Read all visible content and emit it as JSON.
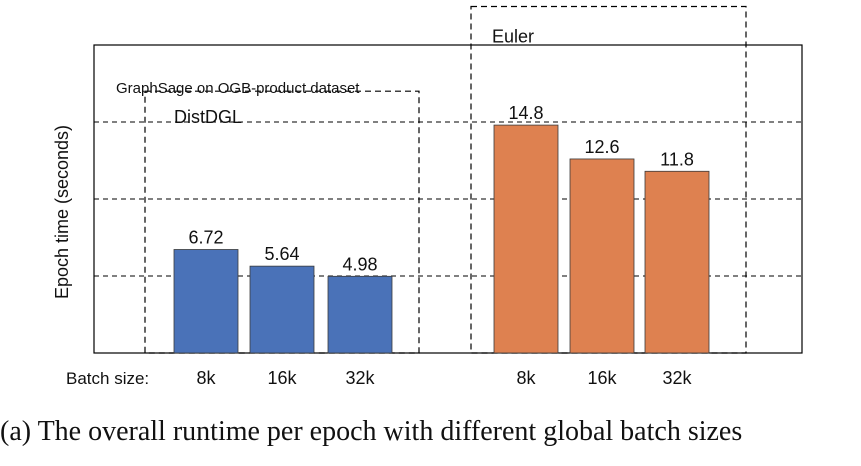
{
  "chart_data": {
    "type": "bar",
    "annotation": "GraphSage on OGB-product dataset",
    "xlabel": "Batch size:",
    "ylabel": "Epoch time (seconds)",
    "ylim": [
      0,
      20
    ],
    "grid": "horizontal dashed",
    "groups": [
      {
        "name": "DistDGL",
        "color": "#4a72b8",
        "categories": [
          "8k",
          "16k",
          "32k"
        ],
        "values": [
          6.72,
          5.64,
          4.98
        ],
        "labels": [
          "6.72",
          "5.64",
          "4.98"
        ]
      },
      {
        "name": "Euler",
        "color": "#de8150",
        "categories": [
          "8k",
          "16k",
          "32k"
        ],
        "values": [
          14.8,
          12.6,
          11.8
        ],
        "labels": [
          "14.8",
          "12.6",
          "11.8"
        ]
      }
    ]
  },
  "caption": "(a) The overall runtime per epoch with different global batch sizes"
}
